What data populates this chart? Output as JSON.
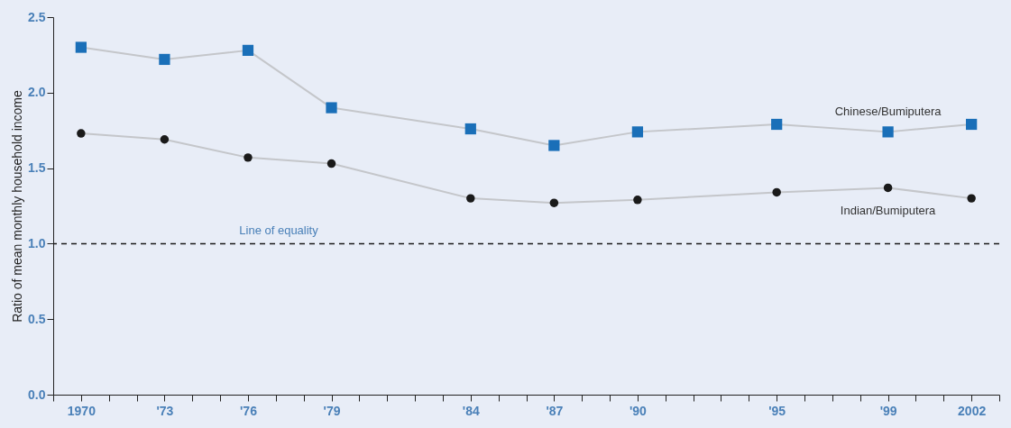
{
  "chart_data": {
    "type": "line",
    "ylabel": "Ratio of mean monthly household income",
    "x": [
      1970,
      1973,
      1976,
      1979,
      1984,
      1987,
      1990,
      1995,
      1999,
      2002
    ],
    "series": [
      {
        "name": "Chinese/Bumiputera",
        "color": "#1a6fb8",
        "marker": "square",
        "values": [
          2.3,
          2.22,
          2.28,
          1.9,
          1.76,
          1.65,
          1.74,
          1.79,
          1.74,
          1.79
        ]
      },
      {
        "name": "Indian/Bumiputera",
        "color": "#1a1a1a",
        "marker": "circle",
        "values": [
          1.73,
          1.69,
          1.57,
          1.53,
          1.3,
          1.27,
          1.29,
          1.34,
          1.37,
          1.3
        ]
      }
    ],
    "xlim": [
      1969,
      2003
    ],
    "xticks": [
      {
        "value": 1969,
        "label": null
      },
      {
        "value": 1970,
        "label": "1970"
      },
      {
        "value": 1971,
        "label": null
      },
      {
        "value": 1972,
        "label": null
      },
      {
        "value": 1973,
        "label": "'73"
      },
      {
        "value": 1974,
        "label": null
      },
      {
        "value": 1975,
        "label": null
      },
      {
        "value": 1976,
        "label": "'76"
      },
      {
        "value": 1977,
        "label": null
      },
      {
        "value": 1978,
        "label": null
      },
      {
        "value": 1979,
        "label": "'79"
      },
      {
        "value": 1980,
        "label": null
      },
      {
        "value": 1981,
        "label": null
      },
      {
        "value": 1982,
        "label": null
      },
      {
        "value": 1983,
        "label": null
      },
      {
        "value": 1984,
        "label": "'84"
      },
      {
        "value": 1985,
        "label": null
      },
      {
        "value": 1986,
        "label": null
      },
      {
        "value": 1987,
        "label": "'87"
      },
      {
        "value": 1988,
        "label": null
      },
      {
        "value": 1989,
        "label": null
      },
      {
        "value": 1990,
        "label": "'90"
      },
      {
        "value": 1991,
        "label": null
      },
      {
        "value": 1992,
        "label": null
      },
      {
        "value": 1993,
        "label": null
      },
      {
        "value": 1994,
        "label": null
      },
      {
        "value": 1995,
        "label": "'95"
      },
      {
        "value": 1996,
        "label": null
      },
      {
        "value": 1997,
        "label": null
      },
      {
        "value": 1998,
        "label": null
      },
      {
        "value": 1999,
        "label": "'99"
      },
      {
        "value": 2000,
        "label": null
      },
      {
        "value": 2001,
        "label": null
      },
      {
        "value": 2002,
        "label": "2002"
      },
      {
        "value": 2003,
        "label": null
      }
    ],
    "ylim": [
      0,
      2.5
    ],
    "yticks": [
      {
        "value": 0,
        "label": "0.0"
      },
      0.5,
      {
        "value": 1,
        "label": "1.0"
      },
      1.5,
      {
        "value": 2,
        "label": "2.0"
      },
      2.5
    ],
    "ref_lines": [
      {
        "axis": "y",
        "value": 1,
        "label": "Line of equality",
        "color": "#1a1a1a",
        "line_style": "dashed"
      }
    ],
    "grid": false,
    "line_style": "solid"
  }
}
